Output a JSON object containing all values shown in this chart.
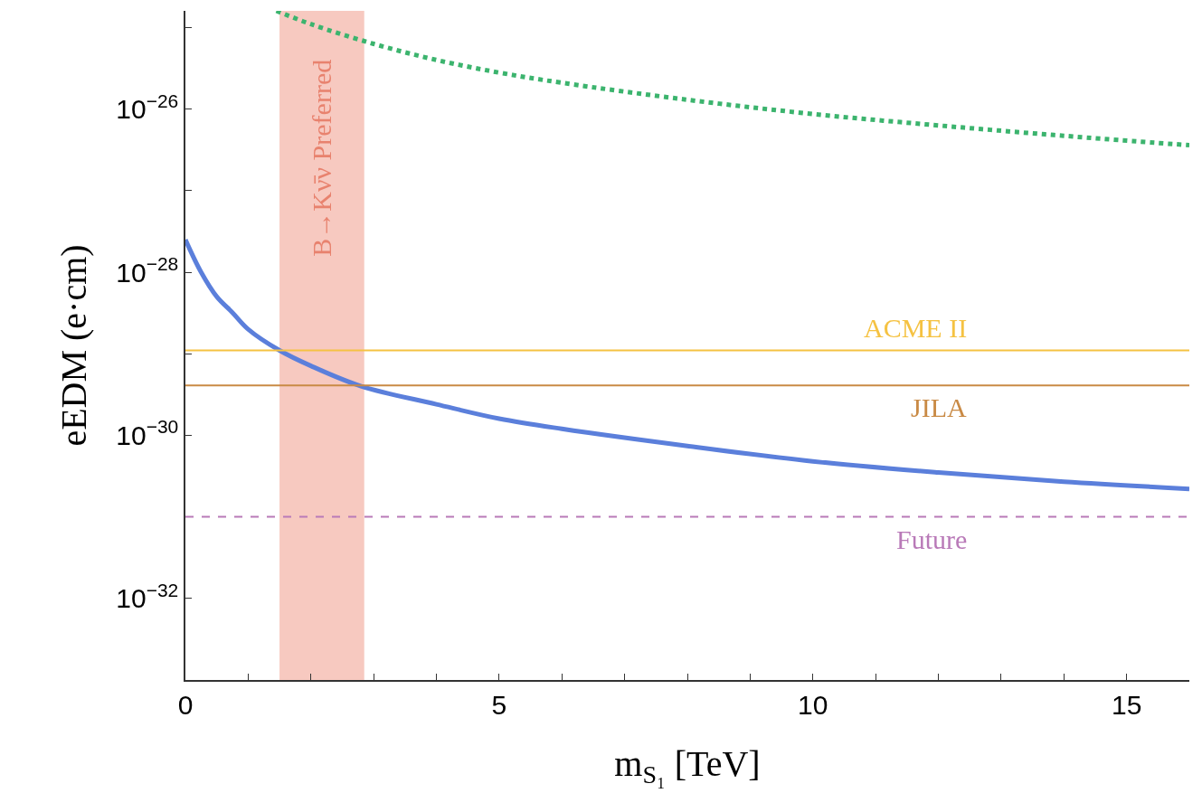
{
  "chart_data": {
    "type": "line",
    "xlabel": "m$_{S₁}$ [TeV]",
    "ylabel": "eEDM (e·cm)",
    "log": "y",
    "grid": false,
    "marker": "none",
    "xlim": [
      0,
      16
    ],
    "ylim": [
      1e-33,
      1.6e-25
    ],
    "xticks": [
      0,
      {
        "value": 1,
        "label": null
      },
      {
        "value": 2,
        "label": null
      },
      {
        "value": 3,
        "label": null
      },
      {
        "value": 4,
        "label": null
      },
      5,
      {
        "value": 6,
        "label": null
      },
      {
        "value": 7,
        "label": null
      },
      {
        "value": 8,
        "label": null
      },
      {
        "value": 9,
        "label": null
      },
      10,
      {
        "value": 11,
        "label": null
      },
      {
        "value": 12,
        "label": null
      },
      {
        "value": 13,
        "label": null
      },
      {
        "value": 14,
        "label": null
      },
      15
    ],
    "yticks": [
      {
        "value": 1e-33,
        "label": null
      },
      {
        "value": 1e-32,
        "label": "10$^{−32}$"
      },
      {
        "value": 1e-31,
        "label": null
      },
      {
        "value": 1e-30,
        "label": "10$^{−30}$"
      },
      {
        "value": 1e-29,
        "label": null
      },
      {
        "value": 1e-28,
        "label": "10$^{−28}$"
      },
      {
        "value": 1e-27,
        "label": null
      },
      {
        "value": 1e-26,
        "label": "10$^{−26}$"
      },
      {
        "value": 1e-25,
        "label": null
      }
    ],
    "series": [
      {
        "color": "#5b7fdb",
        "line_style": "solid",
        "x": [
          0,
          0.25,
          0.5,
          0.75,
          1,
          1.5,
          2,
          2.8,
          4,
          5,
          6,
          8,
          10,
          12,
          14,
          16
        ],
        "values": [
          2.5e-28,
          1e-28,
          5e-29,
          3.2e-29,
          2e-29,
          1.1e-29,
          7.1e-30,
          4e-30,
          2.4e-30,
          1.6e-30,
          1.2e-30,
          7.4e-31,
          4.8e-31,
          3.5e-31,
          2.7e-31,
          2.2e-31
        ]
      },
      {
        "color": "#3cb46e",
        "line_style": "dotted",
        "x": [
          1.45,
          2,
          3,
          4,
          5,
          6,
          8,
          10,
          12,
          14,
          16
        ],
        "values": [
          1.6e-25,
          1.1e-25,
          6.3e-26,
          4e-26,
          2.8e-26,
          2.1e-26,
          1.3e-26,
          8.7e-27,
          6.3e-27,
          4.7e-27,
          3.6e-27
        ]
      }
    ],
    "ref_lines": [
      {
        "axis": "y",
        "value": 1.1e-29,
        "label": "ACME II",
        "color": "#f5c242",
        "line_style": "solid"
      },
      {
        "axis": "y",
        "value": 4.1e-30,
        "label": "JILA",
        "color": "#c98a45",
        "line_style": "solid"
      },
      {
        "axis": "y",
        "value": 1e-31,
        "label": "Future",
        "color": "#b97ab8",
        "line_style": "dashed"
      }
    ],
    "bands": [
      {
        "axis": "x",
        "from": 1.5,
        "to": 2.85,
        "label": "B→Kν̄ν Preferred",
        "color": "#f7c9c0"
      }
    ]
  }
}
